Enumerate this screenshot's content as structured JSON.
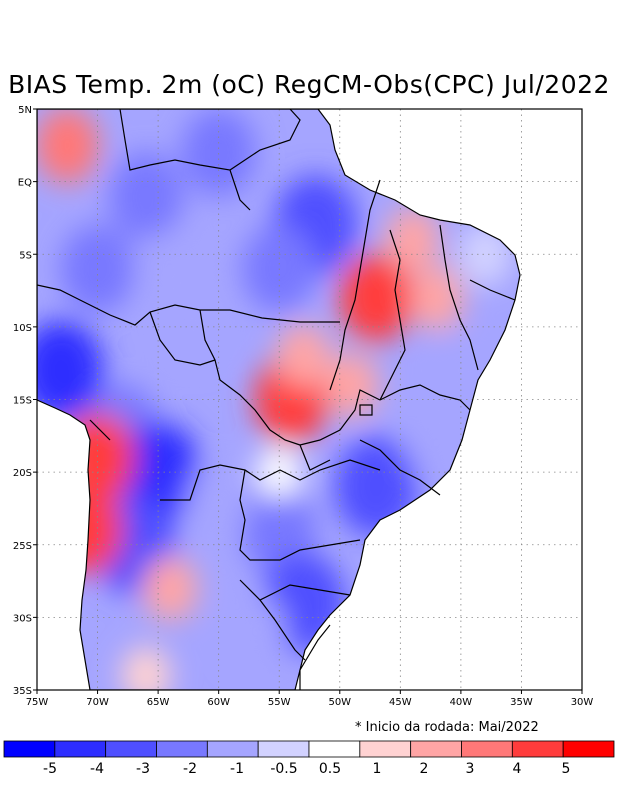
{
  "title": "BIAS Temp. 2m (oC) RegCM-Obs(CPC) Jul/2022",
  "note": "* Inicio da rodada: Mai/2022",
  "map": {
    "lon_range": [
      -75,
      -30
    ],
    "lat_range": [
      -35,
      5
    ],
    "lon_ticks": [
      {
        "value": -75,
        "label": "75W"
      },
      {
        "value": -70,
        "label": "70W"
      },
      {
        "value": -65,
        "label": "65W"
      },
      {
        "value": -60,
        "label": "60W"
      },
      {
        "value": -55,
        "label": "55W"
      },
      {
        "value": -50,
        "label": "50W"
      },
      {
        "value": -45,
        "label": "45W"
      },
      {
        "value": -40,
        "label": "40W"
      },
      {
        "value": -35,
        "label": "35W"
      },
      {
        "value": -30,
        "label": "30W"
      }
    ],
    "lat_ticks": [
      {
        "value": 5,
        "label": "5N"
      },
      {
        "value": 0,
        "label": "EQ"
      },
      {
        "value": -5,
        "label": "5S"
      },
      {
        "value": -10,
        "label": "10S"
      },
      {
        "value": -15,
        "label": "15S"
      },
      {
        "value": -20,
        "label": "20S"
      },
      {
        "value": -25,
        "label": "25S"
      },
      {
        "value": -30,
        "label": "30S"
      },
      {
        "value": -35,
        "label": "35S"
      }
    ],
    "bias_blobs": [
      {
        "lon": -72.5,
        "lat": 2.5,
        "value": 2
      },
      {
        "lon": -66,
        "lat": -1,
        "value": -3
      },
      {
        "lon": -60,
        "lat": 2,
        "value": -3
      },
      {
        "lon": -52,
        "lat": -3,
        "value": -4
      },
      {
        "lon": -55,
        "lat": -6,
        "value": -3
      },
      {
        "lon": -64,
        "lat": -6,
        "value": -2
      },
      {
        "lon": -70,
        "lat": -6,
        "value": -3
      },
      {
        "lon": -73,
        "lat": -13,
        "value": -5
      },
      {
        "lon": -68,
        "lat": -17,
        "value": -3
      },
      {
        "lon": -65,
        "lat": -20,
        "value": -5
      },
      {
        "lon": -67,
        "lat": -25,
        "value": -4
      },
      {
        "lon": -70,
        "lat": -19,
        "value": 3
      },
      {
        "lon": -71,
        "lat": -24,
        "value": 3
      },
      {
        "lon": -64,
        "lat": -28,
        "value": 1
      },
      {
        "lon": -62,
        "lat": -10,
        "value": -2
      },
      {
        "lon": -54,
        "lat": -15,
        "value": 3
      },
      {
        "lon": -53,
        "lat": -12,
        "value": 1
      },
      {
        "lon": -47,
        "lat": -8,
        "value": 3
      },
      {
        "lon": -42,
        "lat": -8,
        "value": 1
      },
      {
        "lon": -44,
        "lat": -4,
        "value": 1
      },
      {
        "lon": -49,
        "lat": -14,
        "value": 1
      },
      {
        "lon": -47,
        "lat": -21,
        "value": -4
      },
      {
        "lon": -42,
        "lat": -18,
        "value": -2
      },
      {
        "lon": -40,
        "lat": -13,
        "value": -2
      },
      {
        "lon": -55,
        "lat": -24,
        "value": -3
      },
      {
        "lon": -53,
        "lat": -29,
        "value": -4
      },
      {
        "lon": -57,
        "lat": -31,
        "value": -2
      },
      {
        "lon": -60,
        "lat": -22,
        "value": -2
      },
      {
        "lon": -55,
        "lat": -20,
        "value": 0
      },
      {
        "lon": -38,
        "lat": -5,
        "value": -1
      },
      {
        "lon": -66,
        "lat": -34,
        "value": 0.5
      }
    ]
  },
  "colorbar": {
    "labels": [
      "-5",
      "-4",
      "-3",
      "-2",
      "-1",
      "-0.5",
      "0.5",
      "1",
      "2",
      "3",
      "4",
      "5"
    ],
    "colors": [
      "#0000ff",
      "#2d2dff",
      "#4f4fff",
      "#7878ff",
      "#a5a5ff",
      "#d2d2ff",
      "#ffffff",
      "#ffd2d2",
      "#ffa5a5",
      "#ff7878",
      "#ff3c3c",
      "#ff0000"
    ]
  }
}
